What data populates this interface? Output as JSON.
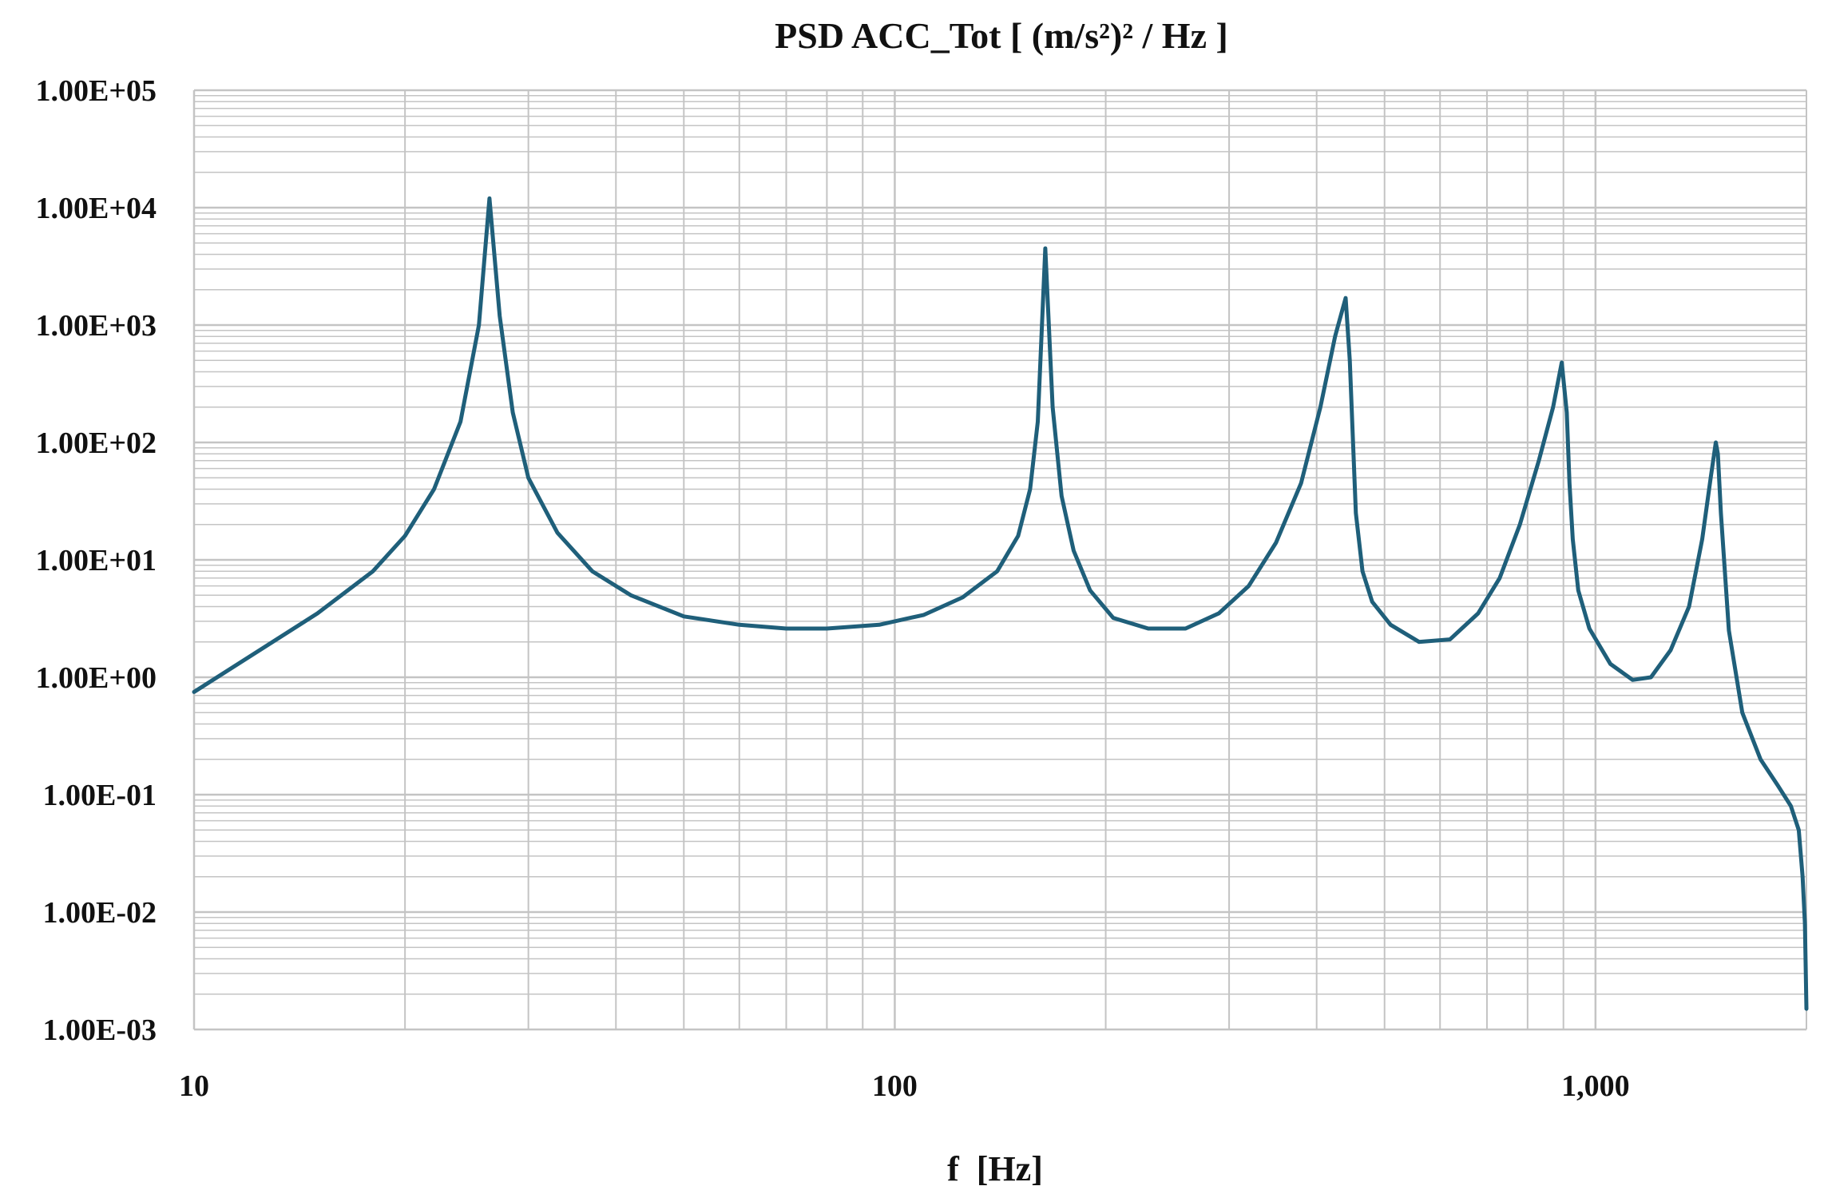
{
  "chart_data": {
    "type": "line",
    "title": "PSD ACC_Tot [ (m/s²)² / Hz ]",
    "xlabel": "f  [Hz]",
    "ylabel": "",
    "x_scale": "log",
    "y_scale": "log",
    "xlim": [
      10,
      2000
    ],
    "ylim": [
      0.001,
      100000
    ],
    "grid": true,
    "legend": "none",
    "x_tick_values": [
      10,
      100,
      1000
    ],
    "x_tick_labels": [
      "10",
      "100",
      "1,000"
    ],
    "y_tick_values": [
      0.001,
      0.01,
      0.1,
      1,
      10,
      100,
      1000,
      10000,
      100000
    ],
    "y_tick_labels": [
      "1.00E-03",
      "1.00E-02",
      "1.00E-01",
      "1.00E+00",
      "1.00E+01",
      "1.00E+02",
      "1.00E+03",
      "1.00E+04",
      "1.00E+05"
    ],
    "line_color": "#1f5f7a",
    "grid_color": "#c4c4c4",
    "series": [
      {
        "x": [
          10,
          12,
          15,
          18,
          20,
          22,
          24,
          25.5,
          26.4,
          27.3,
          28.5,
          30,
          33,
          37,
          42,
          50,
          60,
          70,
          80,
          95,
          110,
          125,
          140,
          150,
          156,
          160,
          164,
          168,
          173,
          180,
          190,
          205,
          230,
          260,
          290,
          320,
          350,
          380,
          405,
          425,
          440,
          446,
          450,
          455,
          465,
          480,
          510,
          560,
          620,
          680,
          730,
          780,
          830,
          870,
          895,
          910,
          918,
          928,
          945,
          980,
          1050,
          1130,
          1200,
          1280,
          1360,
          1420,
          1460,
          1485,
          1495,
          1510,
          1550,
          1620,
          1720,
          1820,
          1900,
          1950,
          1975,
          1990,
          2000
        ],
        "y": [
          0.75,
          1.5,
          3.5,
          8,
          16,
          40,
          150,
          1000,
          12000,
          1200,
          180,
          50,
          17,
          8,
          5,
          3.3,
          2.8,
          2.6,
          2.6,
          2.8,
          3.4,
          4.8,
          8,
          16,
          40,
          150,
          4500,
          200,
          35,
          12,
          5.5,
          3.2,
          2.6,
          2.6,
          3.5,
          6,
          14,
          45,
          200,
          800,
          1700,
          500,
          130,
          25,
          8,
          4.4,
          2.8,
          2.0,
          2.1,
          3.5,
          7,
          20,
          70,
          200,
          480,
          180,
          45,
          15,
          5.5,
          2.6,
          1.3,
          0.95,
          1.0,
          1.7,
          4,
          15,
          50,
          100,
          80,
          25,
          2.5,
          0.5,
          0.2,
          0.12,
          0.08,
          0.05,
          0.02,
          0.008,
          0.0015
        ]
      }
    ]
  }
}
